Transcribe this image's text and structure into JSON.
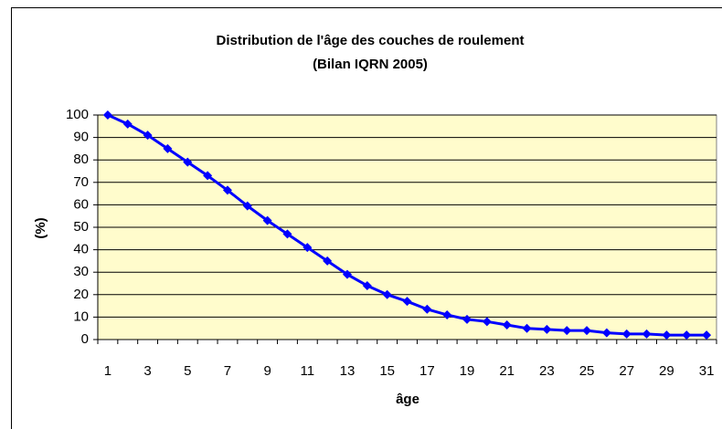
{
  "chart_data": {
    "type": "line",
    "title": "Distribution de l'âge des couches de roulement",
    "subtitle": "(Bilan IQRN 2005)",
    "x_label": "âge",
    "y_label": "(%)",
    "categories": [
      "1",
      null,
      "3",
      null,
      "5",
      null,
      "7",
      null,
      "9",
      null,
      "11",
      null,
      "13",
      null,
      "15",
      null,
      "17",
      null,
      "19",
      null,
      "21",
      null,
      "23",
      null,
      "25",
      null,
      "27",
      null,
      "29",
      null,
      "31"
    ],
    "series": [
      {
        "name": "Distribution",
        "color": "#0000ff",
        "values": [
          100,
          96,
          91,
          85,
          79,
          73,
          66.5,
          59.5,
          53,
          47,
          41,
          35,
          29,
          24,
          20,
          17,
          13.5,
          11,
          9,
          8,
          6.5,
          5,
          4.5,
          4,
          4,
          3,
          2.5,
          2.5,
          2,
          2,
          2
        ]
      }
    ],
    "ylim": [
      0,
      100
    ],
    "yticks": [
      0,
      10,
      20,
      30,
      40,
      50,
      60,
      70,
      80,
      90,
      100
    ],
    "grid": true,
    "plot_background": "#fffccc"
  }
}
